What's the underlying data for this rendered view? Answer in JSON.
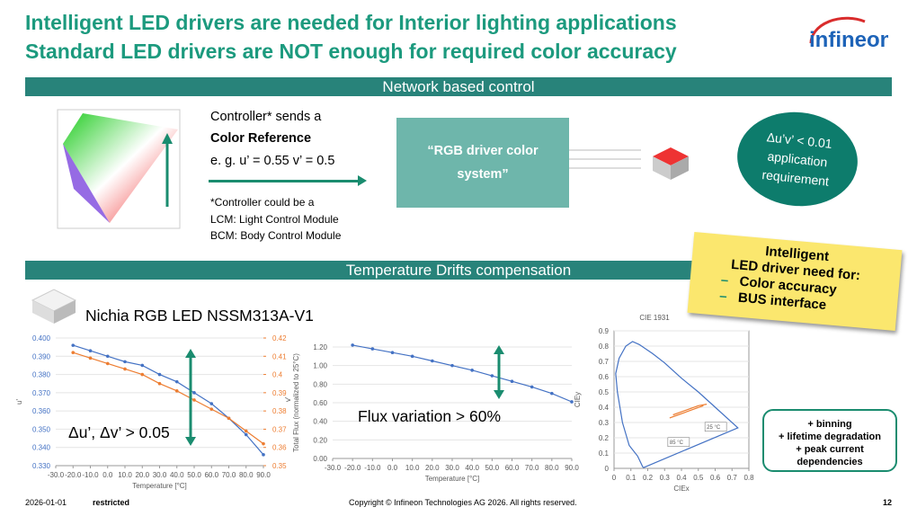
{
  "header": {
    "title_line1": "Intelligent LED drivers are needed for Interior lighting applications",
    "title_line2": "Standard LED drivers are NOT enough for required color accuracy",
    "logo": "infineon"
  },
  "section1": {
    "bar": "Network based control",
    "controller_line1": "Controller* sends a",
    "controller_line2": "Color Reference",
    "controller_line3": "e. g. u’ = 0.55 v’ = 0.5",
    "note_line1": "*Controller could be a",
    "note_line2": "LCM: Light Control Module",
    "note_line3": "BCM: Body Control Module",
    "box": "“RGB driver color system”",
    "circle_line1": "Δu’v’ < 0.01",
    "circle_line2": "application",
    "circle_line3": "requirement"
  },
  "sticky": {
    "line1": "Intelligent",
    "line2": "LED driver need for:",
    "items": [
      "Color accuracy",
      "BUS interface"
    ]
  },
  "section2": {
    "bar": "Temperature Drifts compensation",
    "led": "Nichia RGB LED NSSM313A-V1",
    "chart1_note": "Δu’, Δv’ > 0.05",
    "chart2_note": "Flux variation > 60%"
  },
  "charts": [
    {
      "type": "line",
      "xlabel": "Temperature [°C]",
      "ylabel": "u'",
      "y2label": "v'",
      "x": [
        -20,
        -10,
        0,
        10,
        20,
        30,
        40,
        50,
        60,
        70,
        80,
        90
      ],
      "xlim": [
        -30,
        90
      ],
      "xticks": [
        {
          "value": -30,
          "label": "-30.0"
        },
        {
          "value": -20,
          "label": "-20.0"
        },
        {
          "value": -10,
          "label": "-10.0"
        },
        {
          "value": 0,
          "label": "0.0"
        },
        {
          "value": 10,
          "label": "10.0"
        },
        {
          "value": 20,
          "label": "20.0"
        },
        {
          "value": 30,
          "label": "30.0"
        },
        {
          "value": 40,
          "label": "40.0"
        },
        {
          "value": 50,
          "label": "50.0"
        },
        {
          "value": 60,
          "label": "60.0"
        },
        {
          "value": 70,
          "label": "70.0"
        },
        {
          "value": 80,
          "label": "80.0"
        },
        {
          "value": 90,
          "label": "90.0"
        }
      ],
      "ylim": [
        0.33,
        0.4
      ],
      "yticks": [
        {
          "value": 0.33,
          "label": "0.330"
        },
        {
          "value": 0.34,
          "label": "0.340"
        },
        {
          "value": 0.35,
          "label": "0.350"
        },
        {
          "value": 0.36,
          "label": "0.360"
        },
        {
          "value": 0.37,
          "label": "0.370"
        },
        {
          "value": 0.38,
          "label": "0.380"
        },
        {
          "value": 0.39,
          "label": "0.390"
        },
        {
          "value": 0.4,
          "label": "0.400"
        }
      ],
      "y2lim": [
        0.35,
        0.42
      ],
      "y2ticks": [
        0.35,
        0.36,
        0.37,
        0.38,
        0.39,
        0.4,
        0.41,
        0.42
      ],
      "series": [
        {
          "color": "#4472c4",
          "values": [
            0.396,
            0.393,
            0.39,
            0.387,
            0.385,
            0.38,
            0.376,
            0.37,
            0.364,
            0.356,
            0.347,
            0.336
          ]
        },
        {
          "color": "#ed7d31",
          "axis": "y2",
          "values": [
            0.412,
            0.409,
            0.406,
            0.403,
            0.4,
            0.395,
            0.391,
            0.386,
            0.381,
            0.376,
            0.369,
            0.362
          ]
        }
      ]
    },
    {
      "type": "line",
      "xlabel": "Temperature [°C]",
      "ylabel": "Total Flux (normalized to 25°C)",
      "x": [
        -20,
        -10,
        0,
        10,
        20,
        30,
        40,
        50,
        60,
        70,
        80,
        90
      ],
      "xlim": [
        -30,
        90
      ],
      "xticks": [
        {
          "value": -30,
          "label": "-30.0"
        },
        {
          "value": -20,
          "label": "-20.0"
        },
        {
          "value": -10,
          "label": "-10.0"
        },
        {
          "value": 0,
          "label": "0.0"
        },
        {
          "value": 10,
          "label": "10.0"
        },
        {
          "value": 20,
          "label": "20.0"
        },
        {
          "value": 30,
          "label": "30.0"
        },
        {
          "value": 40,
          "label": "40.0"
        },
        {
          "value": 50,
          "label": "50.0"
        },
        {
          "value": 60,
          "label": "60.0"
        },
        {
          "value": 70,
          "label": "70.0"
        },
        {
          "value": 80,
          "label": "80.0"
        },
        {
          "value": 90,
          "label": "90.0"
        }
      ],
      "ylim": [
        0,
        1.2
      ],
      "yticks": [
        {
          "value": 0,
          "label": "0.00"
        },
        {
          "value": 0.2,
          "label": "0.20"
        },
        {
          "value": 0.4,
          "label": "0.40"
        },
        {
          "value": 0.6,
          "label": "0.60"
        },
        {
          "value": 0.8,
          "label": "0.80"
        },
        {
          "value": 1,
          "label": "1.00"
        },
        {
          "value": 1.2,
          "label": "1.20"
        }
      ],
      "series": [
        {
          "color": "#4472c4",
          "values": [
            1.22,
            1.18,
            1.14,
            1.1,
            1.05,
            1,
            0.95,
            0.89,
            0.83,
            0.77,
            0.7,
            0.61
          ]
        }
      ]
    },
    {
      "type": "line",
      "title": "CIE 1931",
      "xlabel": "CIEx",
      "ylabel": "CIEy",
      "xlim": [
        0,
        0.8
      ],
      "xticks": [
        0,
        0.1,
        0.2,
        0.3,
        0.4,
        0.5,
        0.6,
        0.7,
        0.8
      ],
      "ylim": [
        0,
        0.9
      ],
      "yticks": [
        0,
        0.1,
        0.2,
        0.3,
        0.4,
        0.5,
        0.6,
        0.7,
        0.8,
        0.9
      ],
      "series": [
        {
          "color": "#4472c4",
          "x": [
            0.175,
            0.17,
            0.14,
            0.09,
            0.05,
            0.02,
            0.01,
            0.03,
            0.07,
            0.11,
            0.15,
            0.23,
            0.3,
            0.4,
            0.5,
            0.6,
            0.7347,
            0.175
          ],
          "values": [
            0.005,
            0.01,
            0.08,
            0.15,
            0.3,
            0.5,
            0.62,
            0.72,
            0.8,
            0.83,
            0.81,
            0.75,
            0.69,
            0.59,
            0.5,
            0.4,
            0.2653,
            0.005
          ]
        },
        {
          "color": "#ed7d31",
          "x": [
            0.33,
            0.38,
            0.43,
            0.48,
            0.53
          ],
          "values": [
            0.33,
            0.35,
            0.37,
            0.39,
            0.41
          ]
        },
        {
          "color": "#ed7d31",
          "x": [
            0.35,
            0.4,
            0.45,
            0.5,
            0.55
          ],
          "values": [
            0.35,
            0.37,
            0.39,
            0.41,
            0.42
          ]
        }
      ],
      "labels": [
        {
          "text": "25 °C",
          "x": 0.55,
          "y": 0.26
        },
        {
          "text": "85 °C",
          "x": 0.33,
          "y": 0.16
        }
      ]
    }
  ],
  "callout": {
    "lines": [
      "+ binning",
      "+ lifetime degradation",
      "+ peak current",
      "dependencies"
    ]
  },
  "footer": {
    "date": "2026-01-01",
    "class": "restricted",
    "copyright": "Copyright © Infineon Technologies AG 2026. All rights reserved.",
    "page": "12"
  }
}
